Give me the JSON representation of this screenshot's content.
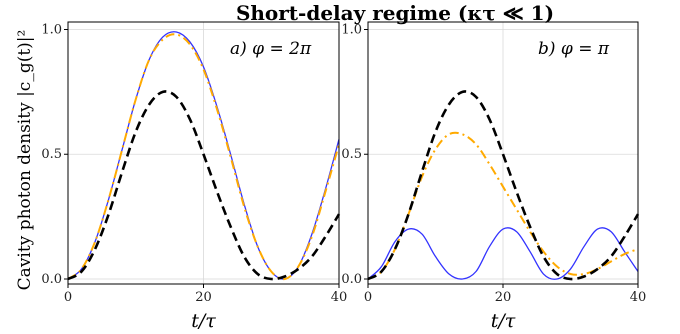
{
  "figure_title": "Short-delay regime (κτ ≪ 1)",
  "ylabel": "Cavity photon density |c_g(t)|²",
  "chart_data": [
    {
      "type": "line",
      "panel": "a",
      "annotation": "a) φ = 2π",
      "xlabel": "t/τ",
      "xlim": [
        0,
        40
      ],
      "ylim": [
        -0.02,
        1.03
      ],
      "xticks": [
        "0",
        "20",
        "40"
      ],
      "yticks": [
        "0.0",
        "0.5",
        "1.0"
      ],
      "grid": true,
      "x": [
        0,
        2,
        4,
        6,
        8,
        10,
        12,
        14,
        16,
        18,
        20,
        22,
        24,
        26,
        28,
        30,
        32,
        34,
        36,
        38,
        40
      ],
      "series": [
        {
          "style": "solid",
          "color": "#3333ff",
          "values": [
            0.0,
            0.04,
            0.15,
            0.32,
            0.52,
            0.72,
            0.88,
            0.97,
            0.99,
            0.95,
            0.85,
            0.69,
            0.5,
            0.3,
            0.13,
            0.03,
            0.0,
            0.05,
            0.18,
            0.36,
            0.56
          ]
        },
        {
          "style": "dashdot",
          "color": "#ffaa00",
          "values": [
            0.0,
            0.04,
            0.15,
            0.32,
            0.52,
            0.72,
            0.88,
            0.96,
            0.98,
            0.94,
            0.84,
            0.68,
            0.49,
            0.29,
            0.13,
            0.03,
            0.0,
            0.05,
            0.17,
            0.35,
            0.54
          ]
        },
        {
          "style": "dashed",
          "color": "#000000",
          "values": [
            0.0,
            0.03,
            0.12,
            0.26,
            0.43,
            0.59,
            0.7,
            0.75,
            0.73,
            0.64,
            0.5,
            0.35,
            0.21,
            0.09,
            0.02,
            0.0,
            0.01,
            0.04,
            0.09,
            0.17,
            0.26
          ]
        }
      ]
    },
    {
      "type": "line",
      "panel": "b",
      "annotation": "b) φ = π",
      "xlabel": "t/τ",
      "xlim": [
        0,
        40
      ],
      "ylim": [
        -0.02,
        1.03
      ],
      "xticks": [
        "0",
        "20",
        "40"
      ],
      "yticks": [
        "0.0",
        "0.5",
        "1.0"
      ],
      "grid": true,
      "x": [
        0,
        2,
        4,
        6,
        8,
        10,
        12,
        14,
        16,
        18,
        20,
        22,
        24,
        26,
        28,
        30,
        32,
        34,
        36,
        38,
        40
      ],
      "series": [
        {
          "style": "solid",
          "color": "#3333ff",
          "values": [
            0.0,
            0.05,
            0.15,
            0.2,
            0.18,
            0.09,
            0.02,
            0.0,
            0.03,
            0.13,
            0.2,
            0.19,
            0.11,
            0.02,
            0.0,
            0.04,
            0.13,
            0.2,
            0.19,
            0.11,
            0.03
          ]
        },
        {
          "style": "dashdot",
          "color": "#ffaa00",
          "values": [
            0.0,
            0.03,
            0.12,
            0.26,
            0.41,
            0.52,
            0.58,
            0.58,
            0.54,
            0.46,
            0.37,
            0.28,
            0.19,
            0.11,
            0.05,
            0.02,
            0.02,
            0.04,
            0.07,
            0.1,
            0.12
          ]
        },
        {
          "style": "dashed",
          "color": "#000000",
          "values": [
            0.0,
            0.03,
            0.12,
            0.26,
            0.43,
            0.59,
            0.7,
            0.75,
            0.73,
            0.64,
            0.5,
            0.35,
            0.21,
            0.09,
            0.02,
            0.0,
            0.01,
            0.04,
            0.09,
            0.17,
            0.26
          ]
        }
      ]
    }
  ]
}
